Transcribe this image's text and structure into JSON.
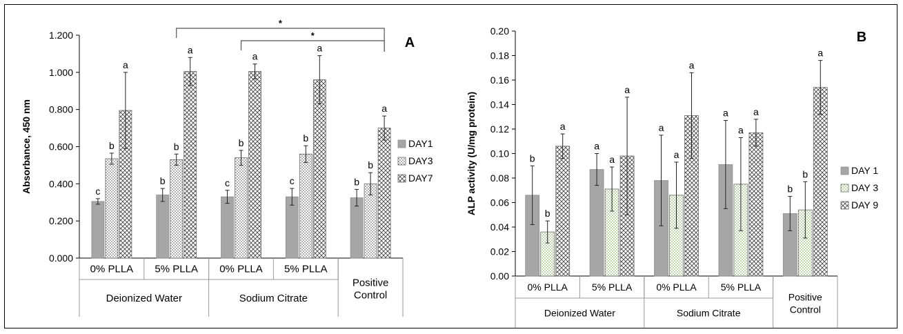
{
  "chart_data": [
    {
      "type": "bar",
      "panel_label": "A",
      "title": "",
      "xlabel": "",
      "ylabel": "Absorbance, 450 nm",
      "ylim": [
        0,
        1.2
      ],
      "yticks": [
        "0.000",
        "0.200",
        "0.400",
        "0.600",
        "0.800",
        "1.000",
        "1.200"
      ],
      "grid": false,
      "legend_position": "right",
      "categories": [
        "0% PLLA",
        "5% PLLA",
        "0% PLLA",
        "5% PLLA",
        ""
      ],
      "groups": [
        {
          "label": "Deionized Water",
          "span": 2
        },
        {
          "label": "Sodium Citrate",
          "span": 2
        },
        {
          "label": "Positive Control",
          "span": 1
        }
      ],
      "series": [
        {
          "name": "DAY1",
          "pattern": "solid",
          "values": [
            0.305,
            0.34,
            0.33,
            0.33,
            0.325
          ],
          "errors": [
            0.015,
            0.035,
            0.035,
            0.045,
            0.045
          ],
          "letters": [
            "c",
            "b",
            "c",
            "c",
            "b"
          ]
        },
        {
          "name": "DAY3",
          "pattern": "dots",
          "values": [
            0.535,
            0.53,
            0.54,
            0.56,
            0.4
          ],
          "errors": [
            0.03,
            0.03,
            0.04,
            0.045,
            0.06
          ],
          "letters": [
            "b",
            "b",
            "b",
            "b",
            "b"
          ]
        },
        {
          "name": "DAY7",
          "pattern": "cross",
          "values": [
            0.795,
            1.005,
            1.005,
            0.96,
            0.7
          ],
          "errors": [
            0.205,
            0.075,
            0.04,
            0.13,
            0.065
          ],
          "letters": [
            "a",
            "a",
            "a",
            "a",
            "a"
          ]
        }
      ],
      "significance": [
        {
          "from_category": 1,
          "to_category": 4,
          "label": "*"
        },
        {
          "from_category": 2,
          "to_category": 4,
          "label": "*"
        }
      ]
    },
    {
      "type": "bar",
      "panel_label": "B",
      "title": "",
      "xlabel": "",
      "ylabel": "ALP activity (U/mg protein)",
      "ylim": [
        0,
        0.2
      ],
      "yticks": [
        "0.00",
        "0.02",
        "0.04",
        "0.06",
        "0.08",
        "0.10",
        "0.12",
        "0.14",
        "0.16",
        "0.18",
        "0.20"
      ],
      "grid": false,
      "legend_position": "right",
      "categories": [
        "0% PLLA",
        "5% PLLA",
        "0% PLLA",
        "5% PLLA",
        ""
      ],
      "groups": [
        {
          "label": "Deionized Water",
          "span": 2
        },
        {
          "label": "Sodium Citrate",
          "span": 2
        },
        {
          "label": "Positive Control",
          "span": 1
        }
      ],
      "series": [
        {
          "name": "DAY 1",
          "pattern": "solid",
          "values": [
            0.066,
            0.087,
            0.078,
            0.091,
            0.051
          ],
          "errors": [
            0.024,
            0.013,
            0.037,
            0.036,
            0.014
          ],
          "letters": [
            "b",
            "a",
            "a",
            "a",
            "b"
          ]
        },
        {
          "name": "DAY 3",
          "pattern": "dots-green",
          "values": [
            0.036,
            0.071,
            0.066,
            0.075,
            0.054
          ],
          "errors": [
            0.009,
            0.018,
            0.027,
            0.038,
            0.023
          ],
          "letters": [
            "b",
            "a",
            "a",
            "a",
            "b"
          ]
        },
        {
          "name": "DAY 9",
          "pattern": "cross",
          "values": [
            0.106,
            0.098,
            0.131,
            0.117,
            0.154
          ],
          "errors": [
            0.01,
            0.048,
            0.035,
            0.011,
            0.022
          ],
          "letters": [
            "a",
            "a",
            "a",
            "a",
            "a"
          ]
        }
      ]
    }
  ]
}
